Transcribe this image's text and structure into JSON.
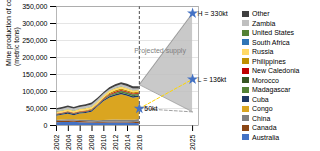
{
  "chart_data": {
    "type": "area",
    "stacked": true,
    "x": [
      2002,
      2003,
      2004,
      2005,
      2006,
      2007,
      2008,
      2009,
      2010,
      2011,
      2012,
      2013,
      2014,
      2015,
      2016
    ],
    "series": [
      {
        "name": "Australia",
        "color": "#4472c4",
        "values": [
          8000,
          8500,
          9000,
          9200,
          8000,
          7500,
          7000,
          6500,
          6800,
          7000,
          7200,
          7000,
          7000,
          6500,
          5500
        ]
      },
      {
        "name": "Canada",
        "color": "#8B4513",
        "values": [
          4000,
          4200,
          4500,
          4000,
          3500,
          3200,
          2800,
          2400,
          2500,
          2600,
          2800,
          2500,
          2200,
          2000,
          4000
        ]
      },
      {
        "name": "China",
        "color": "#808080",
        "values": [
          3000,
          3200,
          3500,
          3800,
          4200,
          4500,
          5000,
          5200,
          5500,
          5800,
          6000,
          6200,
          6500,
          7000,
          7800
        ]
      },
      {
        "name": "Congo",
        "color": "#DAA520",
        "values": [
          12000,
          14000,
          16000,
          12000,
          18000,
          20000,
          24000,
          40000,
          55000,
          65000,
          70000,
          75000,
          70000,
          65000,
          66000
        ]
      },
      {
        "name": "Cuba",
        "color": "#1F3864",
        "values": [
          3000,
          3200,
          3500,
          3200,
          3000,
          2800,
          3500,
          3200,
          3800,
          4000,
          4200,
          4500,
          4500,
          4200,
          4000
        ]
      },
      {
        "name": "Madagascar",
        "color": "#538135",
        "values": [
          0,
          0,
          0,
          0,
          0,
          0,
          0,
          0,
          0,
          2000,
          3500,
          4000,
          4500,
          4200,
          4000
        ]
      },
      {
        "name": "Morocco",
        "color": "#375623",
        "values": [
          1500,
          1500,
          1500,
          1500,
          1500,
          1500,
          1500,
          1500,
          1500,
          1500,
          1500,
          1500,
          1500,
          1500,
          1500
        ]
      },
      {
        "name": "New Caledonia",
        "color": "#C00000",
        "values": [
          1500,
          1500,
          1800,
          1800,
          1800,
          2000,
          2000,
          1800,
          2200,
          2500,
          2500,
          2500,
          2200,
          2200,
          2000
        ]
      },
      {
        "name": "Philippines",
        "color": "#BF8F00",
        "values": [
          1000,
          1000,
          1200,
          1200,
          1500,
          1800,
          2000,
          2200,
          3000,
          4000,
          4500,
          4500,
          4000,
          3500,
          3000
        ]
      },
      {
        "name": "Russia",
        "color": "#FFD966",
        "values": [
          5000,
          5000,
          5200,
          5500,
          5500,
          6000,
          6200,
          6500,
          6000,
          6000,
          6000,
          5800,
          5500,
          5200,
          5000
        ]
      },
      {
        "name": "South Africa",
        "color": "#2E75B6",
        "values": [
          300,
          300,
          300,
          300,
          300,
          300,
          300,
          300,
          300,
          300,
          300,
          300,
          300,
          300,
          300
        ]
      },
      {
        "name": "United States",
        "color": "#548235",
        "values": [
          800,
          800,
          800,
          700,
          700,
          600,
          600,
          500,
          500,
          500,
          700,
          700,
          700,
          700,
          700
        ]
      },
      {
        "name": "Zambia",
        "color": "#BFBFBF",
        "values": [
          4500,
          4500,
          5000,
          5000,
          5000,
          5500,
          5500,
          5000,
          4500,
          4000,
          4500,
          5000,
          5500,
          5000,
          3500
        ]
      },
      {
        "name": "Other",
        "color": "#404040",
        "values": [
          5000,
          5000,
          5000,
          5000,
          5000,
          5500,
          5500,
          5000,
          5000,
          5500,
          6000,
          6500,
          7000,
          7000,
          7000
        ]
      }
    ],
    "projection": {
      "x": [
        2016,
        2025
      ],
      "low": [
        120000,
        40000
      ],
      "high": [
        120000,
        330000
      ],
      "color": "#C0C0C0",
      "line_color": "gray",
      "label": "Projected supply",
      "label_x": 2019.5,
      "label_y": 220000,
      "label_color": "gray"
    },
    "lines": [
      {
        "x": [
          2016,
          2025
        ],
        "values": [
          50000,
          136000
        ],
        "color": "#FFD700",
        "line_style": "dashed"
      },
      {
        "x": [
          2016,
          2025
        ],
        "values": [
          50000,
          40000
        ],
        "color": "#A0A0A0",
        "line_style": "dashed"
      }
    ],
    "vline": {
      "x": 2016,
      "color": "black",
      "line_style": "dashed"
    },
    "points": {
      "x": [
        2016,
        2025,
        2025
      ],
      "values": [
        50000,
        330000,
        136000
      ],
      "value_labels": [
        "50kt",
        "H = 330kt",
        "L = 136kt"
      ],
      "marker": "star",
      "color": "#4472c4"
    },
    "ylabel": "Mine production of cobalt\n(metric tons)",
    "xlim": [
      2002,
      2026
    ],
    "xticks": [
      2002,
      2004,
      2006,
      2008,
      2010,
      2012,
      2014,
      2016,
      2025
    ],
    "ylim": [
      0,
      350000
    ],
    "yticks": [
      0,
      {
        "value": 50000,
        "label": "50,000"
      },
      {
        "value": 100000,
        "label": "100,000"
      },
      {
        "value": 150000,
        "label": "150,000"
      },
      {
        "value": 200000,
        "label": "200,000"
      },
      {
        "value": 250000,
        "label": "250,000"
      },
      {
        "value": 300000,
        "label": "300,000"
      },
      {
        "value": 350000,
        "label": "350,000"
      }
    ],
    "grid": true,
    "legend": "right"
  }
}
